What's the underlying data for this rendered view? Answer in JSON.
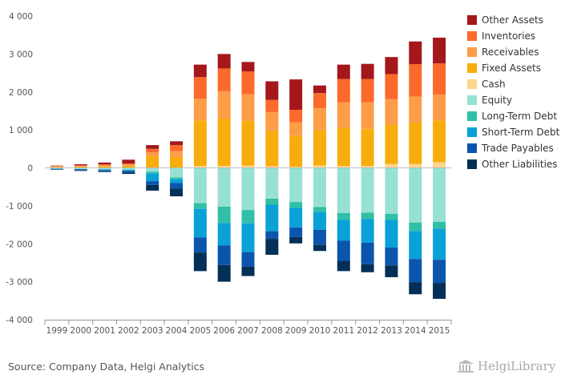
{
  "chart_data": {
    "type": "bar",
    "stacked": true,
    "categories": [
      "1999",
      "2000",
      "2001",
      "2002",
      "2003",
      "2004",
      "2005",
      "2006",
      "2007",
      "2008",
      "2009",
      "2010",
      "2011",
      "2012",
      "2013",
      "2014",
      "2015"
    ],
    "ylim": [
      -4000,
      4000
    ],
    "yticks": [
      4000,
      3000,
      2000,
      1000,
      0,
      -1000,
      -2000,
      -3000,
      -4000
    ],
    "ytick_labels": [
      "4 000",
      "3 000",
      "2 000",
      "1 000",
      "0",
      "-1 000",
      "-2 000",
      "-3 000",
      "-4 000"
    ],
    "grid": false,
    "legend_position": "right",
    "positive_series": [
      {
        "name": "Cash",
        "color": "#FDD58C",
        "values": [
          5,
          5,
          5,
          5,
          10,
          10,
          50,
          50,
          60,
          40,
          30,
          60,
          50,
          50,
          100,
          100,
          150
        ]
      },
      {
        "name": "Fixed Assets",
        "color": "#F7AE0C",
        "values": [
          20,
          30,
          40,
          50,
          300,
          280,
          1200,
          1250,
          1180,
          930,
          820,
          930,
          1000,
          980,
          1030,
          1080,
          1100
        ]
      },
      {
        "name": "Receivables",
        "color": "#FD9D48",
        "values": [
          15,
          20,
          30,
          40,
          100,
          150,
          570,
          720,
          700,
          500,
          350,
          580,
          680,
          700,
          680,
          700,
          680
        ]
      },
      {
        "name": "Inventories",
        "color": "#FC6A2B",
        "values": [
          10,
          10,
          15,
          20,
          90,
          160,
          570,
          600,
          600,
          320,
          330,
          400,
          610,
          610,
          660,
          850,
          820
        ]
      },
      {
        "name": "Other Assets",
        "color": "#A4181C",
        "values": [
          10,
          30,
          50,
          100,
          100,
          100,
          330,
          380,
          250,
          490,
          800,
          200,
          380,
          400,
          450,
          600,
          680
        ]
      }
    ],
    "negative_series": [
      {
        "name": "Equity",
        "color": "#97E1D3",
        "values": [
          -20,
          -30,
          -40,
          -50,
          -100,
          -250,
          -930,
          -1020,
          -1110,
          -810,
          -900,
          -1030,
          -1190,
          -1180,
          -1210,
          -1440,
          -1420
        ]
      },
      {
        "name": "Long-Term Debt",
        "color": "#31BFA8",
        "values": [
          0,
          0,
          0,
          0,
          -50,
          -50,
          -150,
          -430,
          -350,
          -160,
          -150,
          -140,
          -180,
          -170,
          -160,
          -230,
          -180
        ]
      },
      {
        "name": "Short-Term Debt",
        "color": "#0AA1D7",
        "values": [
          -10,
          -10,
          -20,
          -30,
          -200,
          -100,
          -750,
          -590,
          -760,
          -700,
          -520,
          -460,
          -550,
          -620,
          -730,
          -730,
          -820
        ]
      },
      {
        "name": "Trade Payables",
        "color": "#0B55AE",
        "values": [
          -10,
          -20,
          -30,
          -40,
          -100,
          -150,
          -400,
          -520,
          -380,
          -200,
          -250,
          -400,
          -530,
          -570,
          -470,
          -610,
          -610
        ]
      },
      {
        "name": "Other Liabilities",
        "color": "#042F56",
        "values": [
          -10,
          -20,
          -20,
          -40,
          -150,
          -200,
          -490,
          -440,
          -250,
          -420,
          -170,
          -160,
          -270,
          -210,
          -310,
          -320,
          -420
        ]
      }
    ]
  },
  "legend": [
    {
      "label": "Other Assets",
      "color": "#A4181C"
    },
    {
      "label": "Inventories",
      "color": "#FC6A2B"
    },
    {
      "label": "Receivables",
      "color": "#FD9D48"
    },
    {
      "label": "Fixed Assets",
      "color": "#F7AE0C"
    },
    {
      "label": "Cash",
      "color": "#FDD58C"
    },
    {
      "label": "Equity",
      "color": "#97E1D3"
    },
    {
      "label": "Long-Term Debt",
      "color": "#31BFA8"
    },
    {
      "label": "Short-Term Debt",
      "color": "#0AA1D7"
    },
    {
      "label": "Trade Payables",
      "color": "#0B55AE"
    },
    {
      "label": "Other Liabilities",
      "color": "#042F56"
    }
  ],
  "footer": {
    "source": "Source: Company Data, Helgi Analytics",
    "brand": "HelgiLibrary",
    "brand_icon": "library-building-icon"
  }
}
